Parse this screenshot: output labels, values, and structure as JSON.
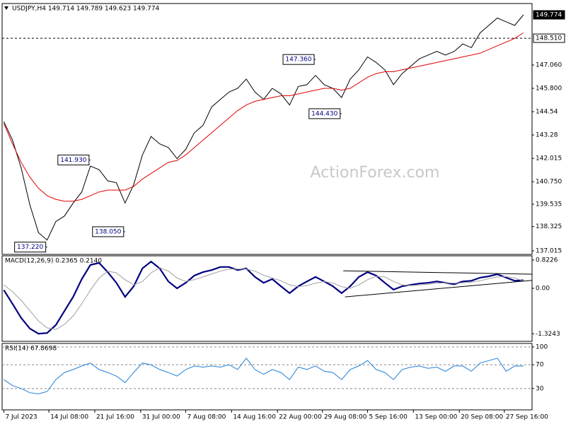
{
  "chart_data": [
    {
      "type": "line",
      "title": "USDJPY,H4  149.714 149.789 149.623 149.774",
      "watermark": "ActionForex.com",
      "xlim": [
        -0.2,
        61
      ],
      "ylim": [
        136.824,
        150.385
      ],
      "yticks": [
        137.015,
        {
          "value": 138.325,
          "label": "138.325"
        },
        139.535,
        {
          "value": 140.75,
          "label": "140.750"
        },
        142.015,
        143.28,
        144.54,
        {
          "value": 145.8,
          "label": "145.800"
        },
        {
          "value": 147.06,
          "label": "147.060"
        }
      ],
      "series": [
        {
          "name": "USDJPY",
          "color": "#000000",
          "values": [
            144.0,
            143.0,
            141.5,
            139.5,
            138.0,
            137.6,
            138.6,
            138.9,
            139.6,
            140.2,
            141.6,
            141.4,
            140.8,
            140.7,
            139.6,
            140.6,
            142.2,
            143.2,
            142.8,
            142.6,
            142.0,
            142.5,
            143.4,
            143.8,
            144.8,
            145.2,
            145.6,
            145.8,
            146.3,
            145.6,
            145.2,
            145.8,
            145.5,
            144.9,
            145.9,
            146.0,
            146.5,
            146.0,
            145.8,
            145.3,
            146.3,
            146.8,
            147.5,
            147.2,
            146.8,
            146.0,
            146.6,
            147.0,
            147.4,
            147.6,
            147.8,
            147.6,
            147.8,
            148.2,
            148.0,
            148.8,
            149.2,
            149.6,
            149.4,
            149.2,
            149.774
          ]
        },
        {
          "name": "MA",
          "color": "#e00000",
          "values": [
            143.9,
            142.8,
            141.8,
            141.0,
            140.4,
            140.0,
            139.8,
            139.7,
            139.7,
            139.8,
            140.0,
            140.2,
            140.3,
            140.3,
            140.3,
            140.5,
            140.9,
            141.2,
            141.5,
            141.8,
            141.9,
            142.2,
            142.6,
            143.0,
            143.4,
            143.8,
            144.2,
            144.6,
            144.9,
            145.1,
            145.2,
            145.3,
            145.4,
            145.4,
            145.5,
            145.6,
            145.7,
            145.8,
            145.8,
            145.7,
            145.8,
            146.1,
            146.4,
            146.6,
            146.7,
            146.7,
            146.8,
            146.9,
            147.0,
            147.1,
            147.2,
            147.3,
            147.4,
            147.5,
            147.6,
            147.7,
            147.9,
            148.1,
            148.3,
            148.5,
            148.8
          ]
        }
      ],
      "markers": [
        {
          "value": 149.774,
          "label": "149.774",
          "style": "filled"
        },
        {
          "value": 148.51,
          "label": "148.510",
          "style": "dashed"
        }
      ],
      "annotations": [
        {
          "x": 5,
          "value": 137.22,
          "label": "137.220"
        },
        {
          "x": 10,
          "value": 141.93,
          "label": "141.930"
        },
        {
          "x": 14,
          "value": 138.05,
          "label": "138.050"
        },
        {
          "x": 36,
          "value": 147.36,
          "label": "147.360"
        },
        {
          "x": 39,
          "value": 144.43,
          "label": "144.430"
        }
      ]
    },
    {
      "type": "line",
      "title": "MACD(12,26,9) 0.2365 0.2140",
      "xlim": [
        -0.2,
        61
      ],
      "ylim": [
        -1.543,
        0.946
      ],
      "yticks": [
        0.8226,
        {
          "value": 0,
          "label": "0.00"
        },
        -1.3243
      ],
      "series": [
        {
          "name": "MACD",
          "color": "#000080",
          "width": 2.2,
          "values": [
            -0.05,
            -0.45,
            -0.86,
            -1.17,
            -1.32,
            -1.3,
            -1.07,
            -0.66,
            -0.25,
            0.27,
            0.68,
            0.74,
            0.47,
            0.16,
            -0.25,
            0.06,
            0.58,
            0.78,
            0.58,
            0.2,
            0,
            0.16,
            0.37,
            0.47,
            0.53,
            0.62,
            0.62,
            0.53,
            0.58,
            0.33,
            0.16,
            0.27,
            0.06,
            -0.14,
            0.06,
            0.2,
            0.33,
            0.2,
            0.06,
            -0.14,
            0.06,
            0.33,
            0.47,
            0.37,
            0.16,
            -0.04,
            0.06,
            0.1,
            0.14,
            0.16,
            0.2,
            0.16,
            0.12,
            0.2,
            0.22,
            0.31,
            0.35,
            0.41,
            0.31,
            0.22,
            0.2365
          ]
        },
        {
          "name": "Signal",
          "color": "#a0a0a0",
          "width": 1,
          "values": [
            0.1,
            -0.1,
            -0.35,
            -0.65,
            -0.95,
            -1.15,
            -1.2,
            -1.05,
            -0.8,
            -0.45,
            -0.05,
            0.3,
            0.5,
            0.45,
            0.25,
            0.1,
            0.2,
            0.45,
            0.6,
            0.5,
            0.3,
            0.2,
            0.25,
            0.33,
            0.42,
            0.5,
            0.56,
            0.56,
            0.56,
            0.5,
            0.38,
            0.3,
            0.22,
            0.1,
            0.05,
            0.08,
            0.15,
            0.2,
            0.15,
            0.05,
            0.0,
            0.1,
            0.25,
            0.35,
            0.33,
            0.2,
            0.1,
            0.08,
            0.1,
            0.12,
            0.15,
            0.16,
            0.15,
            0.16,
            0.18,
            0.22,
            0.28,
            0.33,
            0.34,
            0.3,
            0.214
          ]
        }
      ],
      "trendlines": [
        {
          "x": [
            39.2,
            61
          ],
          "values": [
            0.51,
            0.41
          ]
        },
        {
          "x": [
            39.4,
            61
          ],
          "values": [
            -0.25,
            0.23
          ]
        }
      ]
    },
    {
      "type": "line",
      "title": "RSI(14) 67.8698",
      "grid": "dashed",
      "xlim": [
        -0.2,
        61
      ],
      "ylim": [
        -5.9,
        105.9
      ],
      "yticks": [
        100,
        70,
        30
      ],
      "series": [
        {
          "name": "RSI",
          "color": "#1f7fd6",
          "values": [
            45,
            35,
            30,
            23,
            21,
            25,
            45,
            57,
            62,
            68,
            73,
            62,
            57,
            51,
            40,
            57,
            73,
            70,
            62,
            57,
            51,
            62,
            68,
            66,
            68,
            66,
            70,
            62,
            81,
            62,
            54,
            62,
            57,
            45,
            66,
            62,
            68,
            59,
            57,
            45,
            62,
            68,
            77,
            62,
            57,
            45,
            62,
            66,
            68,
            64,
            66,
            59,
            68,
            68,
            59,
            73,
            77,
            81,
            59,
            68,
            67.8698
          ]
        }
      ],
      "xticks": [
        {
          "value": 0,
          "label": "7 Jul 2023"
        },
        {
          "value": 5.2,
          "label": "14 Jul 08:00"
        },
        {
          "value": 10.5,
          "label": "21 Jul 16:00"
        },
        {
          "value": 15.8,
          "label": "31 Jul 00:00"
        },
        {
          "value": 21,
          "label": "7 Aug 08:00"
        },
        {
          "value": 26.3,
          "label": "14 Aug 16:00"
        },
        {
          "value": 31.6,
          "label": "22 Aug 00:00"
        },
        {
          "value": 36.8,
          "label": "29 Aug 08:00"
        },
        {
          "value": 42,
          "label": "5 Sep 16:00"
        },
        {
          "value": 47.3,
          "label": "13 Sep 00:00"
        },
        {
          "value": 52.6,
          "label": "20 Sep 08:00"
        },
        {
          "value": 57.8,
          "label": "27 Sep 16:00"
        }
      ]
    }
  ]
}
